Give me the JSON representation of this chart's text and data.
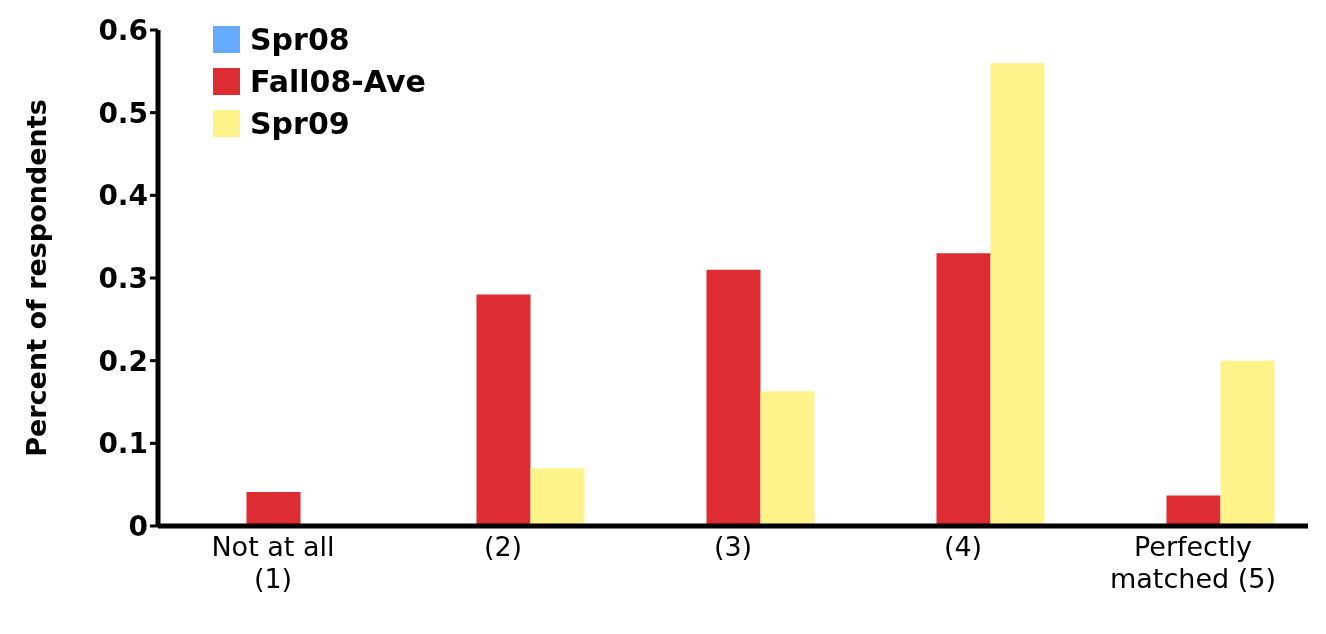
{
  "chart_data": {
    "type": "bar",
    "ylabel": "Percent of respondents",
    "categories": [
      "Not at all (1)",
      "(2)",
      "(3)",
      "(4)",
      "Perfectly matched (5)"
    ],
    "series": [
      {
        "name": "Spr08",
        "color": "#66aaff",
        "values": [
          0,
          0,
          0,
          0,
          0
        ]
      },
      {
        "name": "Fall08-Ave",
        "color": "#dd2c32",
        "values": [
          0.041,
          0.28,
          0.31,
          0.33,
          0.037
        ]
      },
      {
        "name": "Spr09",
        "color": "#fef38a",
        "values": [
          0,
          0.07,
          0.163,
          0.56,
          0.2
        ]
      }
    ],
    "ylim": [
      0,
      0.6
    ],
    "yticks": [
      0,
      0.1,
      0.2,
      0.3,
      0.4,
      0.5,
      0.6
    ],
    "grid": false,
    "legend": "top left"
  }
}
